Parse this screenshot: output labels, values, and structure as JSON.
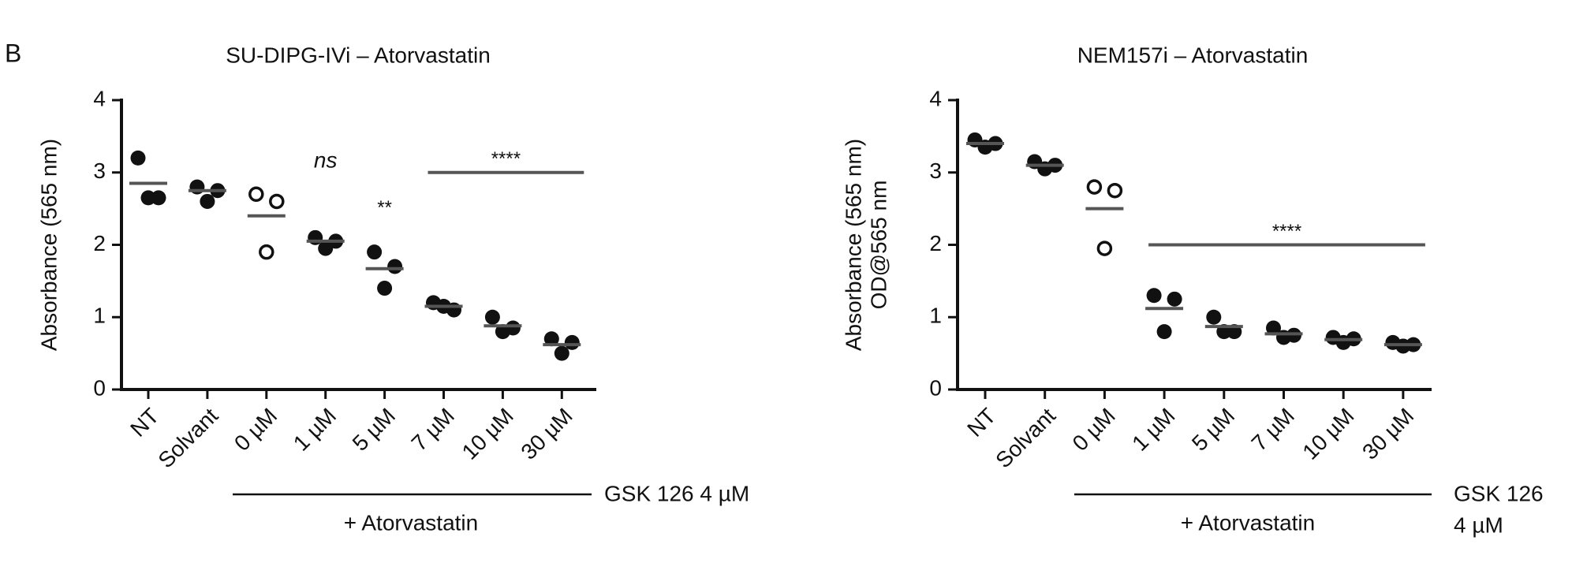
{
  "panel_label": "B",
  "chart_data": [
    {
      "type": "dot",
      "title": "SU-DIPG-IVi – Atorvastatin",
      "ylabel": [
        "Absorbance (565 nm)"
      ],
      "categories": [
        "NT",
        "Solvant",
        "0 µM",
        "1 µM",
        "5 µM",
        "7 µM",
        "10 µM",
        "30 µM"
      ],
      "points": [
        [
          3.2,
          2.65,
          2.65
        ],
        [
          2.8,
          2.75,
          2.6
        ],
        [
          2.7,
          2.6,
          1.9
        ],
        [
          2.1,
          2.05,
          1.95
        ],
        [
          1.9,
          1.7,
          1.4
        ],
        [
          1.2,
          1.1,
          1.15
        ],
        [
          1.0,
          0.85,
          0.8
        ],
        [
          0.7,
          0.65,
          0.5
        ]
      ],
      "means": [
        2.85,
        2.75,
        2.4,
        2.05,
        1.67,
        1.15,
        0.88,
        0.62
      ],
      "hollow": [
        false,
        false,
        true,
        false,
        false,
        false,
        false,
        false
      ],
      "color": "#111111",
      "mean_color": "#555555",
      "ylim": [
        0,
        4
      ],
      "yticks": [
        0,
        1,
        2,
        3,
        4
      ],
      "annotations": [
        {
          "text": "ns",
          "italic": true,
          "category": "1 µM",
          "y": 3.15
        },
        {
          "text": "**",
          "category": "5 µM",
          "y": 2.5
        },
        {
          "text": "****",
          "from": "7 µM",
          "to": "30 µM",
          "y": 3.0
        }
      ],
      "bracket": {
        "label": [
          "GSK 126 4 µM"
        ],
        "sublabel": "+ Atorvastatin",
        "from": "0 µM",
        "to": "30 µM"
      }
    },
    {
      "type": "dot",
      "title": "NEM157i – Atorvastatin",
      "ylabel": [
        "Absorbance (565 nm)",
        "OD@565 nm"
      ],
      "categories": [
        "NT",
        "Solvant",
        "0 µM",
        "1 µM",
        "5 µM",
        "7 µM",
        "10 µM",
        "30 µM"
      ],
      "points": [
        [
          3.45,
          3.4,
          3.35
        ],
        [
          3.15,
          3.1,
          3.05
        ],
        [
          2.8,
          2.75,
          1.95
        ],
        [
          1.3,
          1.25,
          0.8
        ],
        [
          1.0,
          0.8,
          0.8
        ],
        [
          0.85,
          0.75,
          0.72
        ],
        [
          0.72,
          0.7,
          0.65
        ],
        [
          0.65,
          0.62,
          0.6
        ]
      ],
      "means": [
        3.4,
        3.1,
        2.5,
        1.12,
        0.87,
        0.77,
        0.69,
        0.62
      ],
      "hollow": [
        false,
        false,
        true,
        false,
        false,
        false,
        false,
        false
      ],
      "color": "#111111",
      "mean_color": "#555555",
      "ylim": [
        0,
        4
      ],
      "yticks": [
        0,
        1,
        2,
        3,
        4
      ],
      "annotations": [
        {
          "text": "****",
          "from": "1 µM",
          "to": "30 µM",
          "y": 2.0
        }
      ],
      "bracket": {
        "label": [
          "GSK 126",
          "4 µM"
        ],
        "sublabel": "+ Atorvastatin",
        "from": "0 µM",
        "to": "30 µM"
      }
    }
  ]
}
